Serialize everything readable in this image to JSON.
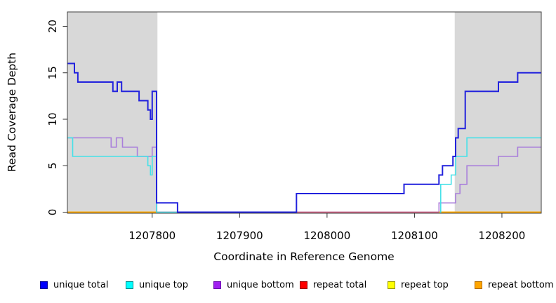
{
  "figure": {
    "xlabel": "Coordinate in Reference Genome",
    "ylabel": "Read Coverage Depth"
  },
  "legend": {
    "items": [
      {
        "label": "unique total",
        "color": "#0000FF",
        "border": "#000099"
      },
      {
        "label": "unique top",
        "color": "#00FFFF",
        "border": "#008B8B"
      },
      {
        "label": "unique bottom",
        "color": "#A020F0",
        "border": "#6A0DAD"
      },
      {
        "label": "repeat total",
        "color": "#FF0000",
        "border": "#990000"
      },
      {
        "label": "repeat top",
        "color": "#FFFF00",
        "border": "#9A9A00"
      },
      {
        "label": "repeat bottom",
        "color": "#FFA500",
        "border": "#B36B00"
      }
    ]
  },
  "chart_data": {
    "type": "line",
    "title": "",
    "xlabel": "Coordinate in Reference Genome",
    "ylabel": "Read Coverage Depth",
    "x_range": [
      1207703,
      1208245
    ],
    "y_range": [
      0,
      21.6
    ],
    "x_ticks": [
      "1207800",
      "1207900",
      "1208000",
      "1208100",
      "1208200"
    ],
    "x_tick_values": [
      1207800,
      1207900,
      1208000,
      1208100,
      1208200
    ],
    "y_ticks": [
      "0",
      "5",
      "10",
      "15",
      "20"
    ],
    "y_tick_values": [
      0,
      5,
      10,
      15,
      20
    ],
    "grid": false,
    "legend_position": "bottom",
    "shaded_regions": [
      {
        "x1": 1207703,
        "x2": 1207806,
        "color": "#D8D8D8"
      },
      {
        "x1": 1208146,
        "x2": 1208245,
        "color": "#D8D8D8"
      }
    ],
    "series": [
      {
        "name": "unique bottom",
        "color": "#A97FDB",
        "width": 1.6,
        "steps": [
          [
            1207703,
            1207753,
            8
          ],
          [
            1207753,
            1207759,
            7
          ],
          [
            1207759,
            1207766,
            8
          ],
          [
            1207766,
            1207783,
            7
          ],
          [
            1207783,
            1207800,
            6
          ],
          [
            1207800,
            1207805,
            7
          ],
          [
            1207805,
            1208128,
            0
          ],
          [
            1208128,
            1208147,
            1
          ],
          [
            1208147,
            1208152,
            2
          ],
          [
            1208152,
            1208160,
            3
          ],
          [
            1208160,
            1208196,
            5
          ],
          [
            1208196,
            1208218,
            6
          ],
          [
            1208218,
            1208245,
            7
          ]
        ]
      },
      {
        "name": "repeat total",
        "color": "#CC5570",
        "width": 1.6,
        "steps": [
          [
            1207703,
            1208245,
            0
          ]
        ]
      },
      {
        "name": "repeat top",
        "color": "#FFFF00",
        "width": 1.6,
        "steps": [
          [
            1207703,
            1207806,
            0
          ],
          [
            1208128,
            1208245,
            0
          ]
        ]
      },
      {
        "name": "repeat bottom",
        "color": "#FFA500",
        "width": 1.8,
        "steps": [
          [
            1207703,
            1207806,
            0
          ],
          [
            1208128,
            1208245,
            0
          ]
        ]
      },
      {
        "name": "unique top",
        "color": "#45E1E8",
        "width": 1.6,
        "steps": [
          [
            1207703,
            1207709,
            8
          ],
          [
            1207709,
            1207795,
            6
          ],
          [
            1207795,
            1207798,
            5
          ],
          [
            1207798,
            1207800,
            4
          ],
          [
            1207800,
            1207805,
            6
          ],
          [
            1207805,
            1207829,
            0
          ],
          [
            1208129,
            1208130,
            0
          ],
          [
            1208130,
            1208142,
            3
          ],
          [
            1208142,
            1208147,
            4
          ],
          [
            1208147,
            1208160,
            6
          ],
          [
            1208160,
            1208245,
            8
          ]
        ]
      },
      {
        "name": "unique total",
        "color": "#2222DD",
        "width": 2.0,
        "steps": [
          [
            1207703,
            1207711,
            16
          ],
          [
            1207711,
            1207715,
            15
          ],
          [
            1207715,
            1207755,
            14
          ],
          [
            1207755,
            1207760,
            13
          ],
          [
            1207760,
            1207765,
            14
          ],
          [
            1207765,
            1207785,
            13
          ],
          [
            1207785,
            1207795,
            12
          ],
          [
            1207795,
            1207798,
            11
          ],
          [
            1207798,
            1207800,
            10
          ],
          [
            1207800,
            1207805,
            13
          ],
          [
            1207805,
            1207829,
            1
          ],
          [
            1207829,
            1207965,
            0
          ],
          [
            1207965,
            1208088,
            2
          ],
          [
            1208088,
            1208128,
            3
          ],
          [
            1208128,
            1208132,
            4
          ],
          [
            1208132,
            1208144,
            5
          ],
          [
            1208144,
            1208147,
            6
          ],
          [
            1208147,
            1208150,
            8
          ],
          [
            1208150,
            1208158,
            9
          ],
          [
            1208158,
            1208196,
            13
          ],
          [
            1208196,
            1208218,
            14
          ],
          [
            1208218,
            1208245,
            15
          ]
        ]
      }
    ]
  }
}
